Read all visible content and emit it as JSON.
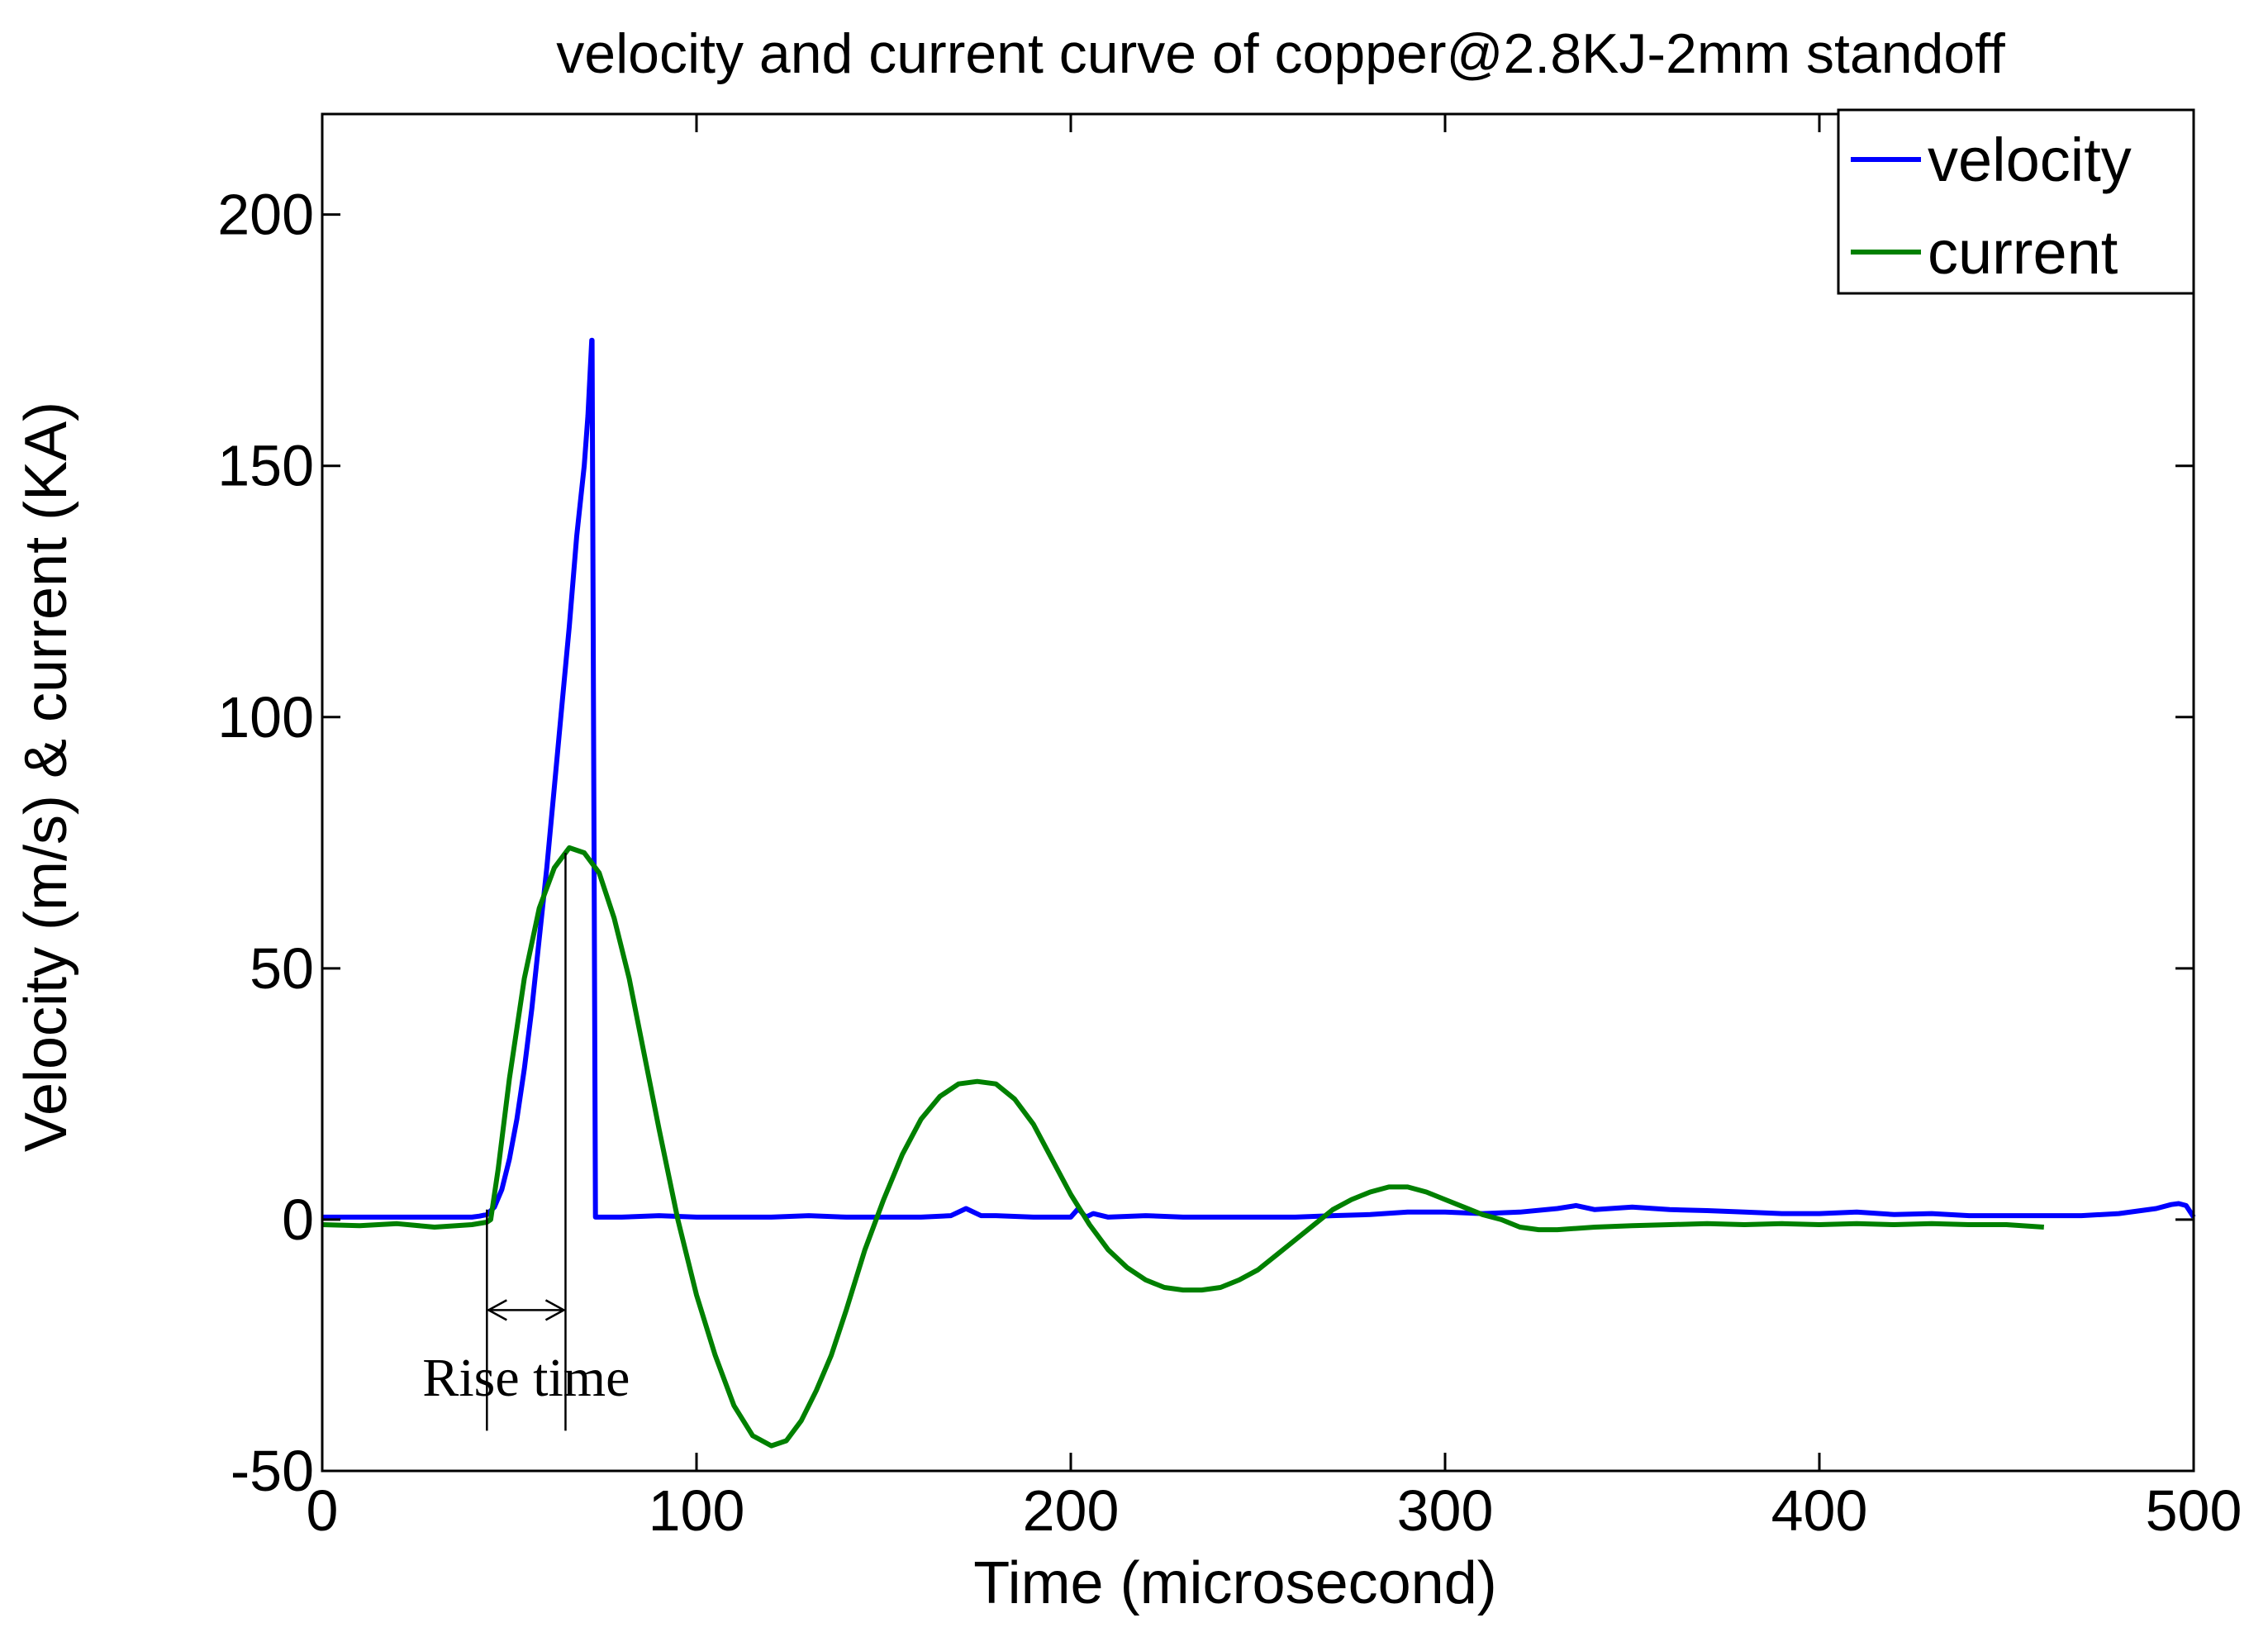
{
  "chart_data": {
    "type": "line",
    "title": "velocity and current curve of copper@2.8KJ-2mm standoff",
    "xlabel": "Time (microsecond)",
    "ylabel": "Velocity (m/s) & current (KA)",
    "xlim": [
      0,
      500
    ],
    "ylim": [
      -50,
      220
    ],
    "xticks": [
      0,
      100,
      200,
      300,
      400,
      500
    ],
    "yticks": [
      -50,
      0,
      50,
      100,
      150,
      200
    ],
    "grid": false,
    "legend_position": "top-right",
    "colors": {
      "velocity": "#0000ff",
      "current": "#008000",
      "axes": "#000000"
    },
    "series": [
      {
        "name": "velocity",
        "x": [
          0,
          10,
          20,
          30,
          40,
          42,
          44,
          46,
          48,
          50,
          52,
          54,
          56,
          58,
          60,
          62,
          64,
          66,
          68,
          70,
          71,
          72,
          72.1,
          73,
          80,
          90,
          100,
          110,
          120,
          130,
          140,
          150,
          160,
          168,
          172,
          176,
          180,
          190,
          200,
          202,
          204,
          206,
          210,
          220,
          230,
          240,
          250,
          260,
          270,
          280,
          290,
          300,
          310,
          320,
          330,
          335,
          340,
          350,
          360,
          370,
          380,
          390,
          400,
          410,
          420,
          430,
          440,
          450,
          460,
          470,
          480,
          490,
          494,
          496,
          498,
          500
        ],
        "values": [
          0.5,
          0.5,
          0.5,
          0.5,
          0.5,
          0.7,
          1.0,
          2.5,
          6,
          12,
          20,
          30,
          42,
          56,
          70,
          86,
          102,
          118,
          136,
          150,
          160,
          175,
          175,
          0.5,
          0.5,
          0.8,
          0.5,
          0.5,
          0.5,
          0.8,
          0.5,
          0.5,
          0.5,
          0.8,
          2.2,
          0.8,
          0.8,
          0.5,
          0.5,
          2.2,
          0.5,
          1.2,
          0.5,
          0.8,
          0.5,
          0.5,
          0.5,
          0.5,
          0.8,
          1.0,
          1.5,
          1.5,
          1.2,
          1.5,
          2.2,
          2.8,
          2.0,
          2.5,
          2.0,
          1.8,
          1.5,
          1.2,
          1.2,
          1.5,
          1.0,
          1.2,
          0.8,
          0.8,
          0.8,
          0.8,
          1.2,
          2.2,
          3.0,
          3.2,
          2.8,
          0.5
        ]
      },
      {
        "name": "current",
        "x": [
          0,
          10,
          20,
          30,
          40,
          44,
          45,
          47,
          50,
          54,
          58,
          62,
          66,
          70,
          74,
          78,
          82,
          86,
          90,
          95,
          100,
          105,
          110,
          115,
          120,
          124,
          128,
          132,
          136,
          140,
          145,
          150,
          155,
          160,
          165,
          170,
          175,
          180,
          185,
          190,
          195,
          200,
          205,
          210,
          215,
          220,
          225,
          230,
          235,
          240,
          245,
          250,
          255,
          260,
          265,
          270,
          275,
          280,
          285,
          290,
          295,
          300,
          305,
          310,
          315,
          320,
          325,
          330,
          340,
          350,
          360,
          370,
          380,
          390,
          400,
          410,
          420,
          430,
          440,
          450,
          460
        ],
        "values": [
          -1.0,
          -1.2,
          -0.8,
          -1.5,
          -1.0,
          -0.5,
          0.0,
          10,
          28,
          48,
          62,
          70,
          74,
          73,
          69,
          60,
          48,
          33,
          18,
          0,
          -15,
          -27,
          -37,
          -43,
          -45,
          -44,
          -40,
          -34,
          -27,
          -18,
          -6,
          4,
          13,
          20,
          24.5,
          27,
          27.5,
          27,
          24,
          19,
          12,
          5,
          -1,
          -6,
          -9.5,
          -12,
          -13.5,
          -14,
          -14,
          -13.5,
          -12,
          -10,
          -7,
          -4,
          -1,
          2,
          4,
          5.5,
          6.5,
          6.5,
          5.5,
          4,
          2.5,
          1,
          0,
          -1.5,
          -2,
          -2,
          -1.5,
          -1.2,
          -1.0,
          -0.8,
          -1.0,
          -0.8,
          -1.0,
          -0.8,
          -1.0,
          -0.8,
          -1.0,
          -1.0,
          -1.5
        ]
      }
    ],
    "annotations": [
      {
        "label": "Rise time",
        "x_start": 44,
        "x_end": 65,
        "arrow_y": -18
      }
    ]
  }
}
